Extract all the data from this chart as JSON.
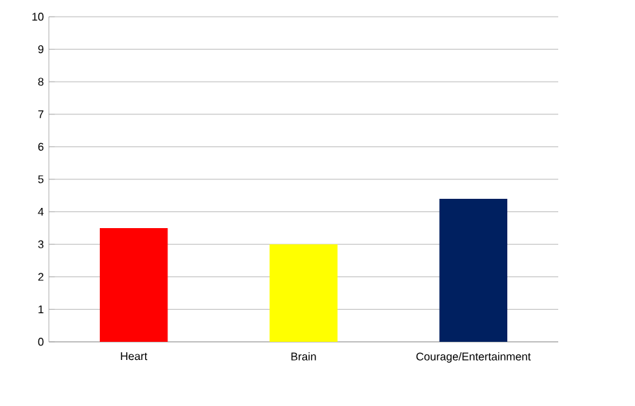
{
  "chart_data": {
    "type": "bar",
    "categories": [
      "Heart",
      "Brain",
      "Courage/Entertainment"
    ],
    "values": [
      3.5,
      3.0,
      4.4
    ],
    "colors": [
      "#ff0000",
      "#ffff00",
      "#002060"
    ],
    "ylim": [
      0,
      10
    ],
    "yticks": [
      0,
      1,
      2,
      3,
      4,
      5,
      6,
      7,
      8,
      9,
      10
    ],
    "grid": "y"
  }
}
